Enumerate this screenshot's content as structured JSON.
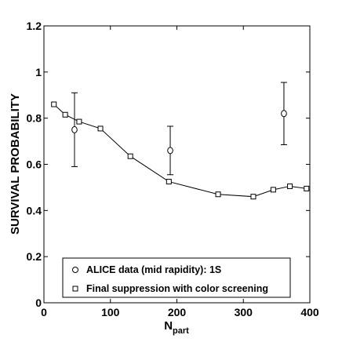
{
  "chart_data": {
    "type": "scatter",
    "xlabel": "N",
    "xlabel_sub": "part",
    "ylabel": "SURVIVAL PROBABILITY",
    "xlim": [
      0,
      400
    ],
    "ylim": [
      0,
      1.2
    ],
    "xticks": [
      0,
      100,
      200,
      300,
      400
    ],
    "yticks": [
      0,
      0.2,
      0.4,
      0.6,
      0.8,
      1,
      1.2
    ],
    "xtick_labels": [
      "0",
      "100",
      "200",
      "300",
      "400"
    ],
    "ytick_labels": [
      "0",
      "0.2",
      "0.4",
      "0.6",
      "0.8",
      "1",
      "1.2"
    ],
    "grid": false,
    "legend_position": "bottom-right",
    "series": [
      {
        "name": "ALICE data (mid rapidity): 1S",
        "marker": "circle",
        "line": false,
        "x": [
          46,
          190,
          361
        ],
        "y": [
          0.75,
          0.66,
          0.82
        ],
        "yerr_low": [
          0.59,
          0.555,
          0.685
        ],
        "yerr_high": [
          0.91,
          0.765,
          0.955
        ]
      },
      {
        "name": "Final suppression with color screening",
        "marker": "square",
        "line": true,
        "x": [
          15,
          32,
          53,
          85,
          130,
          188,
          262,
          315,
          345,
          370,
          395
        ],
        "y": [
          0.86,
          0.815,
          0.785,
          0.755,
          0.635,
          0.525,
          0.47,
          0.46,
          0.49,
          0.505,
          0.495
        ]
      }
    ]
  }
}
